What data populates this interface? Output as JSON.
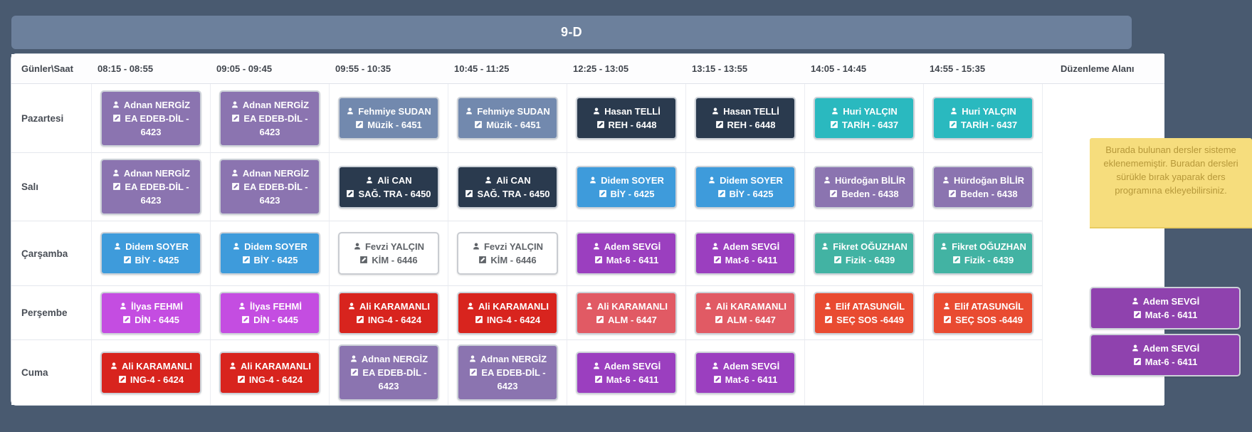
{
  "title": "9-D",
  "header": {
    "corner": "Günler\\Saat",
    "times": [
      "08:15 - 08:55",
      "09:05 - 09:45",
      "09:55 - 10:35",
      "10:45 - 11:25",
      "12:25 - 13:05",
      "13:15 - 13:55",
      "14:05 - 14:45",
      "14:55 - 15:35"
    ],
    "edit_area": "Düzenleme Alanı"
  },
  "rows": [
    {
      "day": "Pazartesi",
      "cells": [
        {
          "teacher": "Adnan NERGİZ",
          "course": "EA EDEB-DİL - 6423",
          "bg": "#8b74b0",
          "fg": "#ffffff"
        },
        {
          "teacher": "Adnan NERGİZ",
          "course": "EA EDEB-DİL - 6423",
          "bg": "#8b74b0",
          "fg": "#ffffff"
        },
        {
          "teacher": "Fehmiye SUDAN",
          "course": "Müzik - 6451",
          "bg": "#7289ae",
          "fg": "#ffffff"
        },
        {
          "teacher": "Fehmiye SUDAN",
          "course": "Müzik - 6451",
          "bg": "#7289ae",
          "fg": "#ffffff"
        },
        {
          "teacher": "Hasan TELLİ",
          "course": "REH - 6448",
          "bg": "#2a3a4e",
          "fg": "#ffffff"
        },
        {
          "teacher": "Hasan TELLİ",
          "course": "REH - 6448",
          "bg": "#2a3a4e",
          "fg": "#ffffff"
        },
        {
          "teacher": "Huri YALÇIN",
          "course": "TARİH - 6437",
          "bg": "#2ab9bf",
          "fg": "#ffffff"
        },
        {
          "teacher": "Huri YALÇIN",
          "course": "TARİH - 6437",
          "bg": "#2ab9bf",
          "fg": "#ffffff"
        }
      ]
    },
    {
      "day": "Salı",
      "cells": [
        {
          "teacher": "Adnan NERGİZ",
          "course": "EA EDEB-DİL - 6423",
          "bg": "#8b74b0",
          "fg": "#ffffff"
        },
        {
          "teacher": "Adnan NERGİZ",
          "course": "EA EDEB-DİL - 6423",
          "bg": "#8b74b0",
          "fg": "#ffffff"
        },
        {
          "teacher": "Ali CAN",
          "course": "SAĞ. TRA - 6450",
          "bg": "#2a3a4e",
          "fg": "#ffffff"
        },
        {
          "teacher": "Ali CAN",
          "course": "SAĞ. TRA - 6450",
          "bg": "#2a3a4e",
          "fg": "#ffffff"
        },
        {
          "teacher": "Didem SOYER",
          "course": "BİY - 6425",
          "bg": "#3e9bdb",
          "fg": "#ffffff"
        },
        {
          "teacher": "Didem SOYER",
          "course": "BİY - 6425",
          "bg": "#3e9bdb",
          "fg": "#ffffff"
        },
        {
          "teacher": "Hürdoğan BİLİR",
          "course": "Beden - 6438",
          "bg": "#8b74b0",
          "fg": "#ffffff"
        },
        {
          "teacher": "Hürdoğan BİLİR",
          "course": "Beden - 6438",
          "bg": "#8b74b0",
          "fg": "#ffffff"
        }
      ]
    },
    {
      "day": "Çarşamba",
      "cells": [
        {
          "teacher": "Didem SOYER",
          "course": "BİY - 6425",
          "bg": "#3e9bdb",
          "fg": "#ffffff"
        },
        {
          "teacher": "Didem SOYER",
          "course": "BİY - 6425",
          "bg": "#3e9bdb",
          "fg": "#ffffff"
        },
        {
          "teacher": "Fevzi YALÇIN",
          "course": "KİM - 6446",
          "bg": "#ffffff",
          "fg": "#5f6368",
          "border": "#c9ccd1"
        },
        {
          "teacher": "Fevzi YALÇIN",
          "course": "KİM - 6446",
          "bg": "#ffffff",
          "fg": "#5f6368",
          "border": "#c9ccd1"
        },
        {
          "teacher": "Adem SEVGİ",
          "course": "Mat-6 - 6411",
          "bg": "#9b3fbf",
          "fg": "#ffffff"
        },
        {
          "teacher": "Adem SEVGİ",
          "course": "Mat-6 - 6411",
          "bg": "#9b3fbf",
          "fg": "#ffffff"
        },
        {
          "teacher": "Fikret OĞUZHAN",
          "course": "Fizik - 6439",
          "bg": "#42b3a3",
          "fg": "#ffffff"
        },
        {
          "teacher": "Fikret OĞUZHAN",
          "course": "Fizik - 6439",
          "bg": "#42b3a3",
          "fg": "#ffffff"
        }
      ]
    },
    {
      "day": "Perşembe",
      "cells": [
        {
          "teacher": "İlyas FEHMİ",
          "course": "DİN - 6445",
          "bg": "#c44de1",
          "fg": "#ffffff"
        },
        {
          "teacher": "İlyas FEHMİ",
          "course": "DİN - 6445",
          "bg": "#c44de1",
          "fg": "#ffffff"
        },
        {
          "teacher": "Ali KARAMANLI",
          "course": "ING-4 - 6424",
          "bg": "#d8241e",
          "fg": "#ffffff"
        },
        {
          "teacher": "Ali KARAMANLI",
          "course": "ING-4 - 6424",
          "bg": "#d8241e",
          "fg": "#ffffff"
        },
        {
          "teacher": "Ali KARAMANLI",
          "course": "ALM - 6447",
          "bg": "#e15a64",
          "fg": "#ffffff"
        },
        {
          "teacher": "Ali KARAMANLI",
          "course": "ALM - 6447",
          "bg": "#e15a64",
          "fg": "#ffffff"
        },
        {
          "teacher": "Elif ATASUNGİL",
          "course": "SEÇ SOS -6449",
          "bg": "#e94b31",
          "fg": "#ffffff"
        },
        {
          "teacher": "Elif ATASUNGİL",
          "course": "SEÇ SOS -6449",
          "bg": "#e94b31",
          "fg": "#ffffff"
        }
      ]
    },
    {
      "day": "Cuma",
      "cells": [
        {
          "teacher": "Ali KARAMANLI",
          "course": "ING-4 - 6424",
          "bg": "#d8241e",
          "fg": "#ffffff"
        },
        {
          "teacher": "Ali KARAMANLI",
          "course": "ING-4 - 6424",
          "bg": "#d8241e",
          "fg": "#ffffff"
        },
        {
          "teacher": "Adnan NERGİZ",
          "course": "EA EDEB-DİL - 6423",
          "bg": "#8b74b0",
          "fg": "#ffffff"
        },
        {
          "teacher": "Adnan NERGİZ",
          "course": "EA EDEB-DİL - 6423",
          "bg": "#8b74b0",
          "fg": "#ffffff"
        },
        {
          "teacher": "Adem SEVGİ",
          "course": "Mat-6 - 6411",
          "bg": "#9b3fbf",
          "fg": "#ffffff"
        },
        {
          "teacher": "Adem SEVGİ",
          "course": "Mat-6 - 6411",
          "bg": "#9b3fbf",
          "fg": "#ffffff"
        },
        null,
        null
      ]
    }
  ],
  "edit_area": {
    "note_text": "Burada bulunan dersler sisteme eklenememiştir. Buradan dersleri sürükle bırak yaparak ders programına ekleyebilirsiniz.",
    "cards": [
      {
        "teacher": "Adem SEVGİ",
        "course": "Mat-6 - 6411",
        "bg": "#8f42ae",
        "fg": "#ffffff"
      },
      {
        "teacher": "Adem SEVGİ",
        "course": "Mat-6 - 6411",
        "bg": "#8f42ae",
        "fg": "#ffffff"
      }
    ]
  },
  "colors": {
    "page_bg": "#495a70",
    "title_bar_bg": "#6c809c",
    "note_bg": "#f6dd7d",
    "note_text": "#b6983a",
    "card_border_default": "#ccd1d8"
  }
}
